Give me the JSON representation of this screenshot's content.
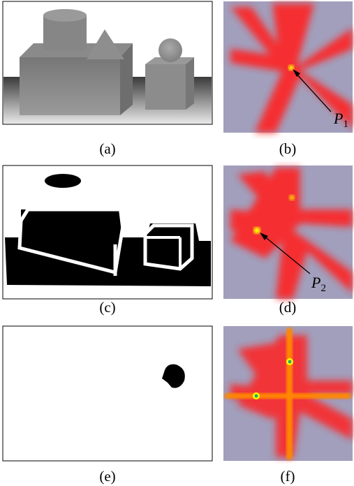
{
  "panels": [
    {
      "caption": "(a)"
    },
    {
      "caption": "(b)"
    },
    {
      "caption": "(c)"
    },
    {
      "caption": "(d)"
    },
    {
      "caption": "(e)"
    },
    {
      "caption": "(f)"
    }
  ],
  "annotations": [
    {
      "label": "P",
      "subscript": "1"
    },
    {
      "label": "P",
      "subscript": "2"
    }
  ]
}
